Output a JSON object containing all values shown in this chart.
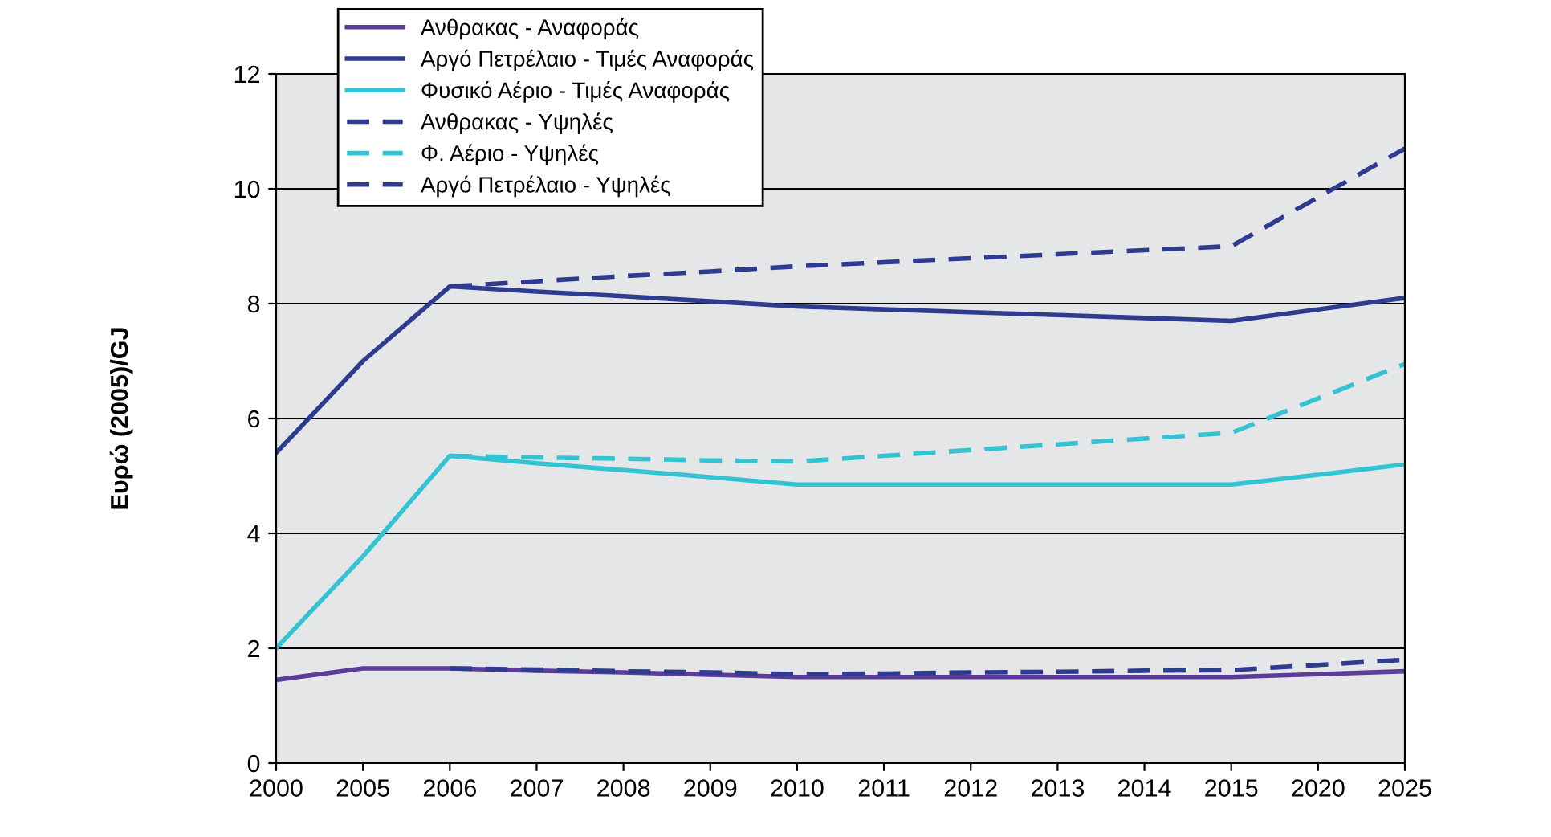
{
  "chart_data": {
    "type": "line",
    "ylabel": "Ευρώ (2005)/GJ",
    "categories": [
      "2000",
      "2005",
      "2006",
      "2007",
      "2008",
      "2009",
      "2010",
      "2011",
      "2012",
      "2013",
      "2014",
      "2015",
      "2020",
      "2025"
    ],
    "ylim": [
      0,
      12
    ],
    "yticks": [
      0,
      2,
      4,
      6,
      8,
      10,
      12
    ],
    "grid": "y",
    "legend": "top left",
    "marker": "none",
    "series": [
      {
        "name": "Ανθρακας - Αναφοράς",
        "color": "#5b3c98",
        "line_style": "solid",
        "values": [
          1.45,
          1.65,
          1.65,
          1.61,
          1.58,
          1.54,
          1.5,
          1.5,
          1.5,
          1.5,
          1.5,
          1.5,
          1.55,
          1.6
        ]
      },
      {
        "name": "Αργό Πετρέλαιο - Τιμές Αναφοράς",
        "color": "#2e3b8f",
        "line_style": "solid",
        "values": [
          5.4,
          7.0,
          8.3,
          8.21,
          8.13,
          8.04,
          7.95,
          7.9,
          7.85,
          7.8,
          7.75,
          7.7,
          7.9,
          8.1
        ]
      },
      {
        "name": "Φυσικό Αέριο - Τιμές Αναφοράς",
        "color": "#33c3d3",
        "line_style": "solid",
        "values": [
          2.0,
          3.6,
          5.35,
          5.22,
          5.1,
          4.98,
          4.85,
          4.85,
          4.85,
          4.85,
          4.85,
          4.85,
          5.02,
          5.2
        ]
      },
      {
        "name": "Ανθρακας - Υψηλές",
        "color": "#2e3b8f",
        "line_style": "dashed",
        "values": [
          null,
          null,
          1.65,
          1.63,
          1.6,
          1.58,
          1.55,
          1.56,
          1.58,
          1.59,
          1.61,
          1.62,
          1.71,
          1.8
        ]
      },
      {
        "name": "Φ. Αέριο - Υψηλές",
        "color": "#33c3d3",
        "line_style": "dashed",
        "values": [
          null,
          null,
          5.35,
          5.32,
          5.3,
          5.27,
          5.25,
          5.35,
          5.45,
          5.55,
          5.65,
          5.75,
          6.35,
          6.95
        ]
      },
      {
        "name": "Αργό Πετρέλαιο - Υψηλές",
        "color": "#2e3b8f",
        "line_style": "dashed",
        "values": [
          null,
          null,
          8.3,
          8.39,
          8.48,
          8.56,
          8.65,
          8.72,
          8.79,
          8.86,
          8.93,
          9.0,
          9.85,
          10.7
        ]
      }
    ]
  }
}
